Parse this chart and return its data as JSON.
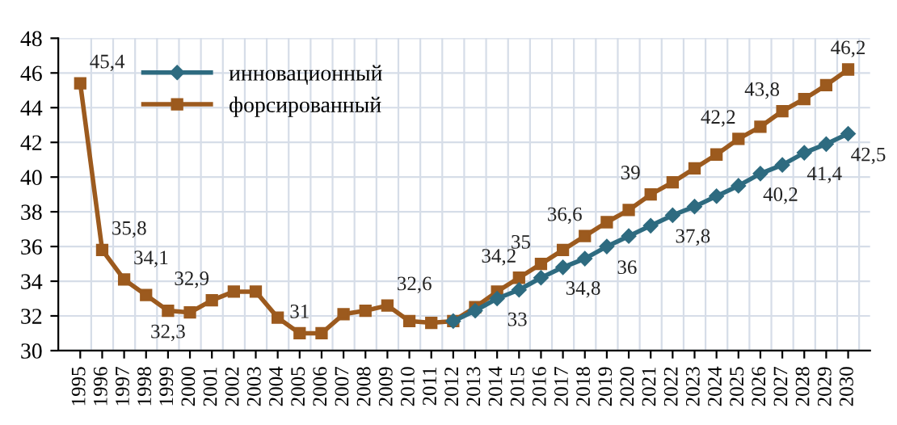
{
  "chart_data": {
    "type": "line",
    "categories": [
      "1995",
      "1996",
      "1997",
      "1998",
      "1999",
      "2000",
      "2001",
      "2002",
      "2003",
      "2004",
      "2005",
      "2006",
      "2007",
      "2008",
      "2009",
      "2010",
      "2011",
      "2012",
      "2013",
      "2014",
      "2015",
      "2016",
      "2017",
      "2018",
      "2019",
      "2020",
      "2021",
      "2022",
      "2023",
      "2024",
      "2025",
      "2026",
      "2027",
      "2028",
      "2029",
      "2030"
    ],
    "ylim": [
      30,
      48
    ],
    "yticks": [
      30,
      32,
      34,
      36,
      38,
      40,
      42,
      44,
      46,
      48
    ],
    "grid": true,
    "legend": "top left",
    "series": [
      {
        "name": "инновационный",
        "color": "#2e6b80",
        "marker": "diamond",
        "values": [
          null,
          null,
          null,
          null,
          null,
          null,
          null,
          null,
          null,
          null,
          null,
          null,
          null,
          null,
          null,
          null,
          null,
          31.7,
          32.3,
          33.0,
          33.5,
          34.2,
          34.8,
          35.3,
          36.0,
          36.6,
          37.2,
          37.8,
          38.3,
          38.9,
          39.5,
          40.2,
          40.7,
          41.4,
          41.9,
          42.5
        ],
        "value_labels": [
          null,
          null,
          null,
          null,
          null,
          null,
          null,
          null,
          null,
          null,
          null,
          null,
          null,
          null,
          null,
          null,
          null,
          null,
          null,
          "33",
          null,
          null,
          "34,8",
          null,
          "36",
          null,
          null,
          "37,8",
          null,
          null,
          null,
          "40,2",
          null,
          "41,4",
          null,
          "42,5"
        ]
      },
      {
        "name": "форсированный",
        "color": "#9c5a1e",
        "marker": "square",
        "values": [
          45.4,
          35.8,
          34.1,
          33.2,
          32.3,
          32.2,
          32.9,
          33.4,
          33.4,
          31.9,
          31.0,
          31.0,
          32.1,
          32.3,
          32.6,
          31.7,
          31.6,
          31.7,
          32.5,
          33.4,
          34.2,
          35.0,
          35.8,
          36.6,
          37.4,
          38.1,
          39.0,
          39.7,
          40.5,
          41.3,
          42.2,
          42.9,
          43.8,
          44.5,
          45.3,
          46.2
        ],
        "value_labels": [
          "45,4",
          "35,8",
          "34,1",
          null,
          "32,3",
          null,
          "32,9",
          null,
          null,
          null,
          "31",
          null,
          null,
          null,
          "32,6",
          null,
          null,
          null,
          null,
          null,
          "34,2",
          "35",
          null,
          "36,6",
          null,
          null,
          "39",
          null,
          null,
          null,
          "42,2",
          null,
          "43,8",
          null,
          null,
          "46,2"
        ]
      }
    ]
  }
}
